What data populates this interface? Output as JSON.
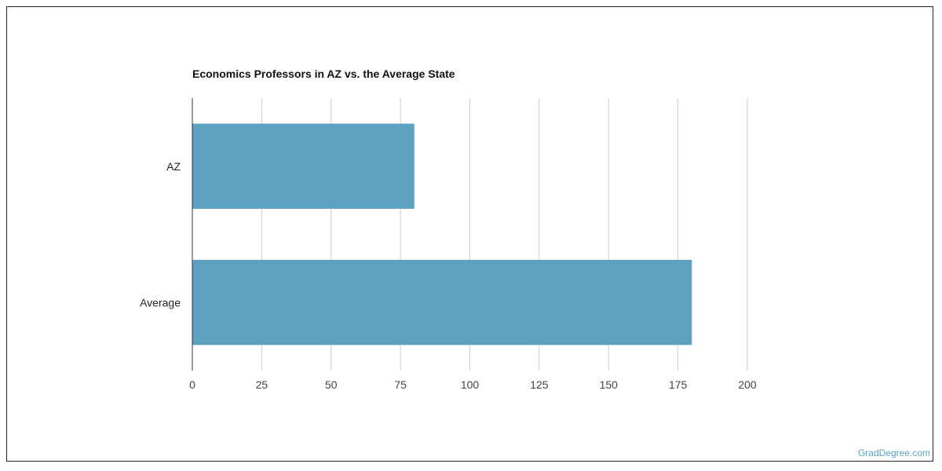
{
  "chart_data": {
    "type": "bar",
    "orientation": "horizontal",
    "title": "Economics Professors in AZ vs. the Average State",
    "categories": [
      "AZ",
      "Average"
    ],
    "values": [
      80,
      180
    ],
    "xlim": [
      0,
      200
    ],
    "xticks": [
      "0",
      "25",
      "50",
      "75",
      "100",
      "125",
      "150",
      "175",
      "200"
    ],
    "grid": "vertical",
    "bar_color": "#5ca1bf"
  },
  "credit": {
    "text": "GradDegree.com",
    "color": "#5ca1bf"
  }
}
